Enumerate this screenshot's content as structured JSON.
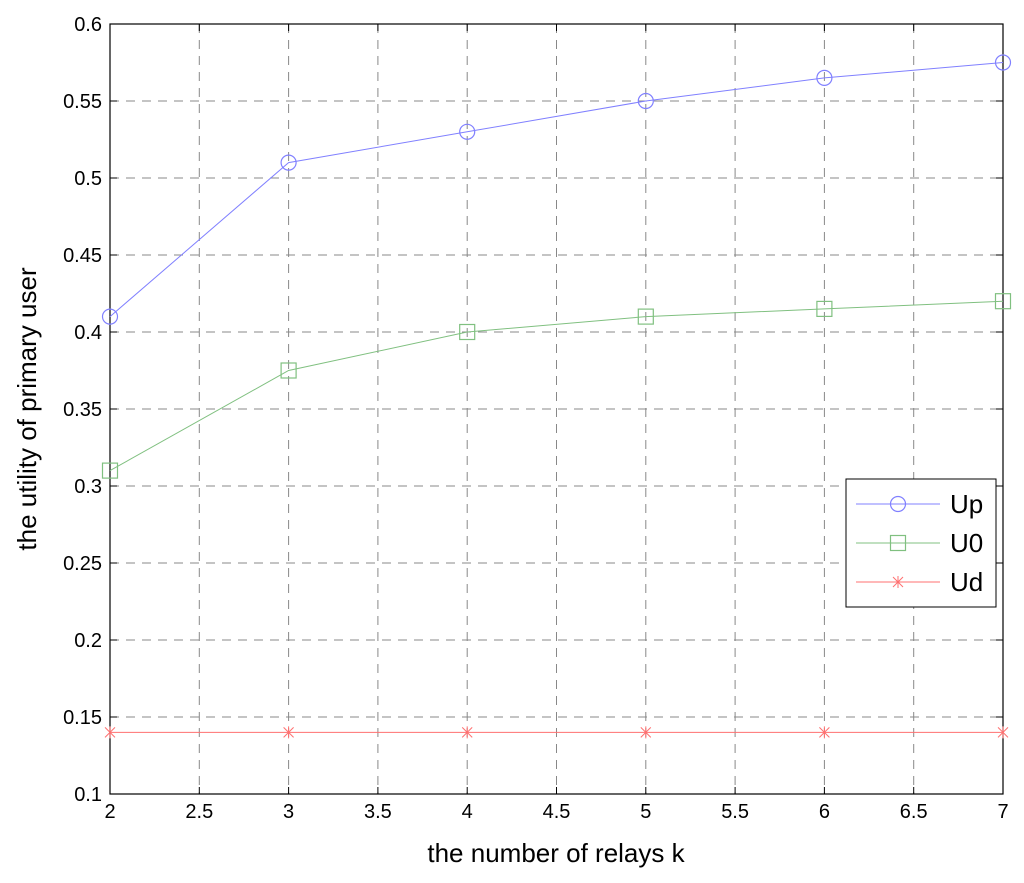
{
  "chart_data": {
    "type": "line",
    "title": "",
    "xlabel": "the number of relays k",
    "ylabel": "the utility of primary user",
    "xlim": [
      2,
      7
    ],
    "ylim": [
      0.1,
      0.6
    ],
    "xticks": [
      2,
      2.5,
      3,
      3.5,
      4,
      4.5,
      5,
      5.5,
      6,
      6.5,
      7
    ],
    "yticks": [
      0.1,
      0.15,
      0.2,
      0.25,
      0.3,
      0.35,
      0.4,
      0.45,
      0.5,
      0.55,
      0.6
    ],
    "grid": true,
    "legend_position": "right",
    "x": [
      2,
      3,
      4,
      5,
      6,
      7
    ],
    "series": [
      {
        "name": "Up",
        "values": [
          0.41,
          0.51,
          0.53,
          0.55,
          0.565,
          0.575
        ],
        "color": "#8080ff",
        "marker": "circle"
      },
      {
        "name": "U0",
        "values": [
          0.31,
          0.375,
          0.4,
          0.41,
          0.415,
          0.42
        ],
        "color": "#80c080",
        "marker": "square"
      },
      {
        "name": "Ud",
        "values": [
          0.14,
          0.14,
          0.14,
          0.14,
          0.14,
          0.14
        ],
        "color": "#ff7070",
        "marker": "star"
      }
    ]
  }
}
